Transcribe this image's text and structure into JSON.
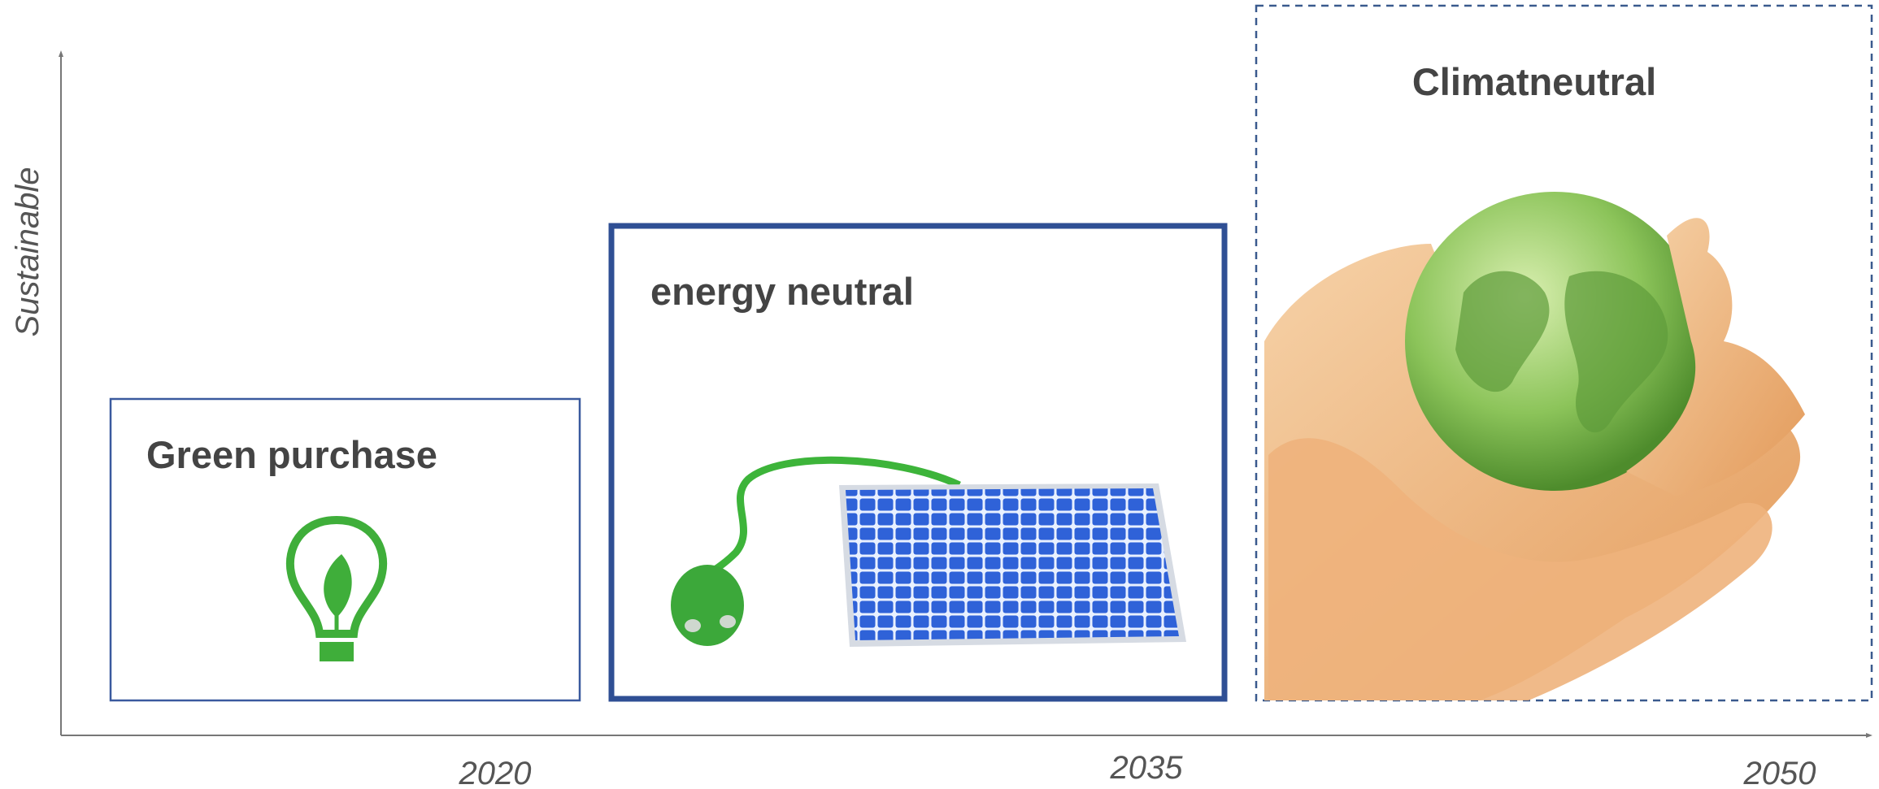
{
  "axis": {
    "y_label": "Sustainable",
    "x_labels": [
      "2020",
      "2035",
      "2050"
    ]
  },
  "stages": [
    {
      "title": "Green purchase"
    },
    {
      "title": "energy neutral"
    },
    {
      "title": "Climatneutral"
    }
  ]
}
